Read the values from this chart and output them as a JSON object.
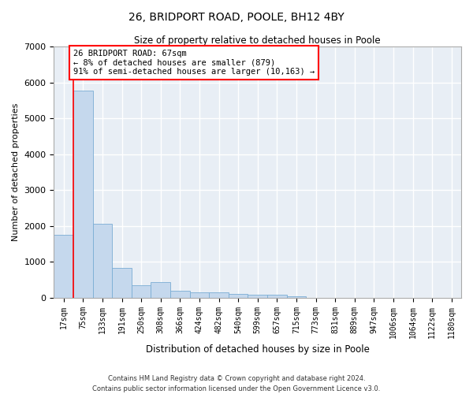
{
  "title": "26, BRIDPORT ROAD, POOLE, BH12 4BY",
  "subtitle": "Size of property relative to detached houses in Poole",
  "xlabel": "Distribution of detached houses by size in Poole",
  "ylabel": "Number of detached properties",
  "bar_color": "#c5d8ed",
  "bar_edge_color": "#7aadd4",
  "background_color": "#e8eef5",
  "grid_color": "#ffffff",
  "categories": [
    "17sqm",
    "75sqm",
    "133sqm",
    "191sqm",
    "250sqm",
    "308sqm",
    "366sqm",
    "424sqm",
    "482sqm",
    "540sqm",
    "599sqm",
    "657sqm",
    "715sqm",
    "773sqm",
    "831sqm",
    "889sqm",
    "947sqm",
    "1006sqm",
    "1064sqm",
    "1122sqm",
    "1180sqm"
  ],
  "values": [
    1760,
    5780,
    2060,
    820,
    350,
    430,
    200,
    160,
    140,
    100,
    80,
    80,
    40,
    0,
    0,
    0,
    0,
    0,
    0,
    0,
    0
  ],
  "ylim": [
    0,
    7000
  ],
  "yticks": [
    0,
    1000,
    2000,
    3000,
    4000,
    5000,
    6000,
    7000
  ],
  "red_line_x": 0.5,
  "annotation_line1": "26 BRIDPORT ROAD: 67sqm",
  "annotation_line2": "← 8% of detached houses are smaller (879)",
  "annotation_line3": "91% of semi-detached houses are larger (10,163) →",
  "footer_line1": "Contains HM Land Registry data © Crown copyright and database right 2024.",
  "footer_line2": "Contains public sector information licensed under the Open Government Licence v3.0."
}
